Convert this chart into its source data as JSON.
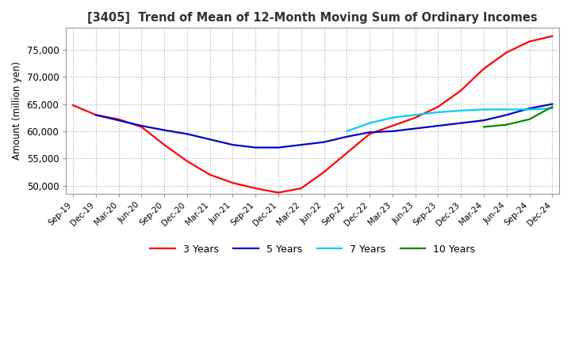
{
  "title": "[3405]  Trend of Mean of 12-Month Moving Sum of Ordinary Incomes",
  "ylabel": "Amount (million yen)",
  "ylim": [
    48500,
    79000
  ],
  "yticks": [
    50000,
    55000,
    60000,
    65000,
    70000,
    75000
  ],
  "background_color": "#ffffff",
  "grid_color": "#aaaaaa",
  "x_labels": [
    "Sep-19",
    "Dec-19",
    "Mar-20",
    "Jun-20",
    "Sep-20",
    "Dec-20",
    "Mar-21",
    "Jun-21",
    "Sep-21",
    "Dec-21",
    "Mar-22",
    "Jun-22",
    "Sep-22",
    "Dec-22",
    "Mar-23",
    "Jun-23",
    "Sep-23",
    "Dec-23",
    "Mar-24",
    "Jun-24",
    "Sep-24",
    "Dec-24"
  ],
  "series": {
    "3 Years": {
      "color": "#ff0000",
      "data": [
        64800,
        63000,
        62200,
        60800,
        57500,
        54500,
        52000,
        50500,
        49500,
        48700,
        49500,
        52500,
        56000,
        59500,
        61000,
        62500,
        64500,
        67500,
        71500,
        74500,
        76500,
        77500
      ]
    },
    "5 Years": {
      "color": "#0000cc",
      "data": [
        null,
        63000,
        62000,
        61000,
        60200,
        59500,
        58500,
        57500,
        57000,
        57000,
        57500,
        58000,
        59000,
        59800,
        60000,
        60500,
        61000,
        61500,
        62000,
        63000,
        64200,
        65000
      ]
    },
    "7 Years": {
      "color": "#00ccee",
      "data": [
        null,
        null,
        null,
        null,
        null,
        null,
        null,
        null,
        null,
        null,
        null,
        null,
        60000,
        61500,
        62500,
        63000,
        63500,
        63800,
        64000,
        64000,
        64000,
        64200
      ]
    },
    "10 Years": {
      "color": "#008800",
      "data": [
        null,
        null,
        null,
        null,
        null,
        null,
        null,
        null,
        null,
        null,
        null,
        null,
        null,
        null,
        null,
        null,
        null,
        null,
        60800,
        61200,
        62200,
        64500
      ]
    }
  },
  "legend_order": [
    "3 Years",
    "5 Years",
    "7 Years",
    "10 Years"
  ]
}
